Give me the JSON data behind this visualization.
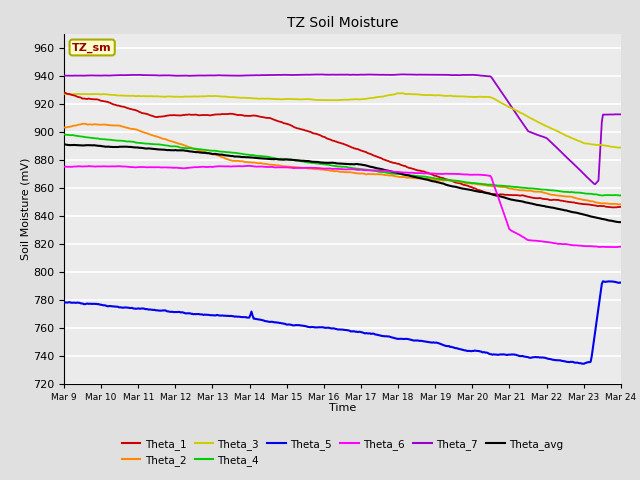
{
  "title": "TZ Soil Moisture",
  "xlabel": "Time",
  "ylabel": "Soil Moisture (mV)",
  "ylim": [
    720,
    970
  ],
  "yticks": [
    720,
    740,
    760,
    780,
    800,
    820,
    840,
    860,
    880,
    900,
    920,
    940,
    960
  ],
  "colors": {
    "Theta_1": "#cc0000",
    "Theta_2": "#ff8800",
    "Theta_3": "#cccc00",
    "Theta_4": "#00cc00",
    "Theta_5": "#0000ee",
    "Theta_6": "#ff00ff",
    "Theta_7": "#9900cc",
    "Theta_avg": "#000000"
  },
  "legend_label": "TZ_sm",
  "legend_box_color": "#ffffcc",
  "legend_box_edge": "#aaaa00",
  "legend_text_color": "#990000",
  "bg_color": "#e0e0e0",
  "plot_bg_color": "#ebebeb",
  "grid_color": "#ffffff",
  "start_day": 9,
  "end_day": 24,
  "num_points": 500
}
